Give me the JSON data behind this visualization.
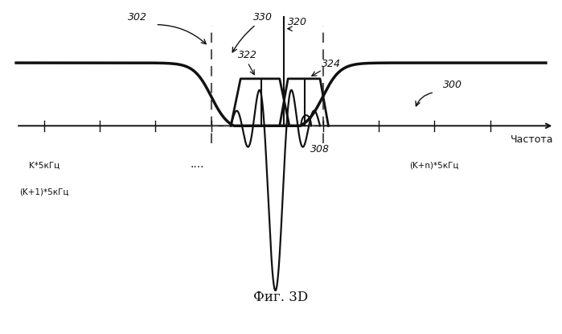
{
  "title": "Фиг. 3D",
  "xlabel": "Частота",
  "label_300": "300",
  "label_302": "302",
  "label_308": "308",
  "label_330": "330",
  "label_320": "320",
  "label_322": "322",
  "label_324": "324",
  "x_tick_label_left1": "K*5кГц",
  "x_tick_label_left2": "(K+1)*5кГц",
  "x_tick_label_right": "(K+n)*5кГц",
  "dots_label": "....",
  "bg_color": "#ffffff",
  "line_color": "#111111",
  "dashed_color": "#555555",
  "axis_color": "#111111"
}
